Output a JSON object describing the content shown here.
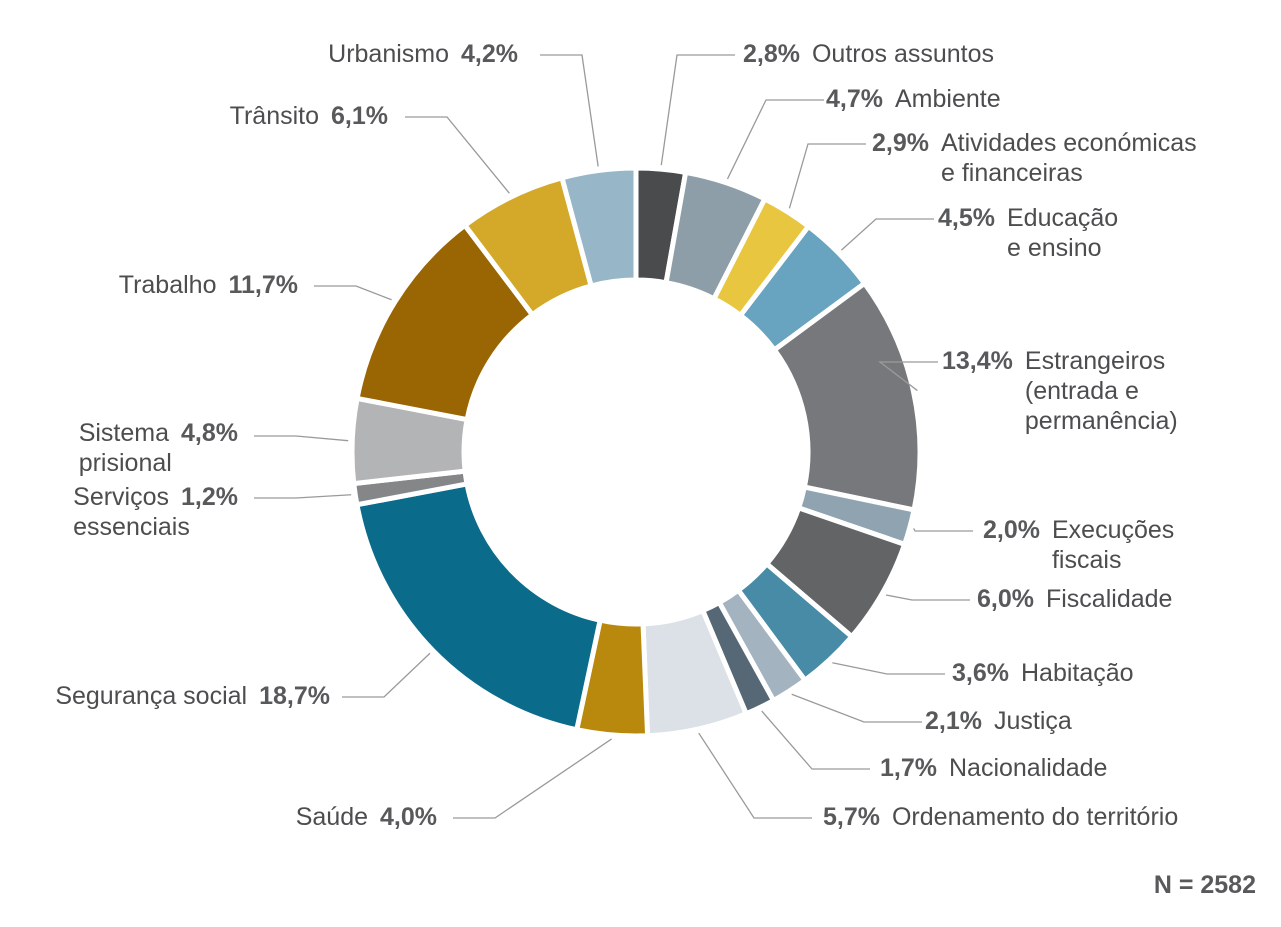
{
  "chart_data": {
    "type": "pie",
    "variant": "donut",
    "title": "",
    "sample_size_label": "N = 2582",
    "slices": [
      {
        "label": [
          "Outros assuntos"
        ],
        "value": 2.8,
        "value_label": "2,8%",
        "color": "#4a4b4d"
      },
      {
        "label": [
          "Ambiente"
        ],
        "value": 4.7,
        "value_label": "4,7%",
        "color": "#8e9ea8"
      },
      {
        "label": [
          "Atividades económicas",
          "e financeiras"
        ],
        "value": 2.9,
        "value_label": "2,9%",
        "color": "#e8c640"
      },
      {
        "label": [
          "Educação",
          "e ensino"
        ],
        "value": 4.5,
        "value_label": "4,5%",
        "color": "#68a3bf"
      },
      {
        "label": [
          "Estrangeiros",
          "(entrada e",
          "permanência)"
        ],
        "value": 13.4,
        "value_label": "13,4%",
        "color": "#77787b"
      },
      {
        "label": [
          "Execuções",
          "fiscais"
        ],
        "value": 2.0,
        "value_label": "2,0%",
        "color": "#8fa3b0"
      },
      {
        "label": [
          "Fiscalidade"
        ],
        "value": 6.0,
        "value_label": "6,0%",
        "color": "#636466"
      },
      {
        "label": [
          "Habitação"
        ],
        "value": 3.6,
        "value_label": "3,6%",
        "color": "#478ba6"
      },
      {
        "label": [
          "Justiça"
        ],
        "value": 2.1,
        "value_label": "2,1%",
        "color": "#a3b3bf"
      },
      {
        "label": [
          "Nacionalidade"
        ],
        "value": 1.7,
        "value_label": "1,7%",
        "color": "#566775"
      },
      {
        "label": [
          "Ordenamento do território"
        ],
        "value": 5.7,
        "value_label": "5,7%",
        "color": "#dbe1e6"
      },
      {
        "label": [
          "Saúde"
        ],
        "value": 4.0,
        "value_label": "4,0%",
        "color": "#b9890e"
      },
      {
        "label": [
          "Segurança social"
        ],
        "value": 18.7,
        "value_label": "18,7%",
        "color": "#0b6b8b"
      },
      {
        "label": [
          "Serviços",
          "essenciais"
        ],
        "value": 1.2,
        "value_label": "1,2%",
        "color": "#858688"
      },
      {
        "label": [
          "Sistema",
          "prisional"
        ],
        "value": 4.8,
        "value_label": "4,8%",
        "color": "#b3b4b6"
      },
      {
        "label": [
          "Trabalho"
        ],
        "value": 11.7,
        "value_label": "11,7%",
        "color": "#9a6503"
      },
      {
        "label": [
          "Trânsito"
        ],
        "value": 6.1,
        "value_label": "6,1%",
        "color": "#d4a92a"
      },
      {
        "label": [
          "Urbanismo"
        ],
        "value": 4.2,
        "value_label": "4,2%",
        "color": "#97b6c8"
      }
    ]
  }
}
